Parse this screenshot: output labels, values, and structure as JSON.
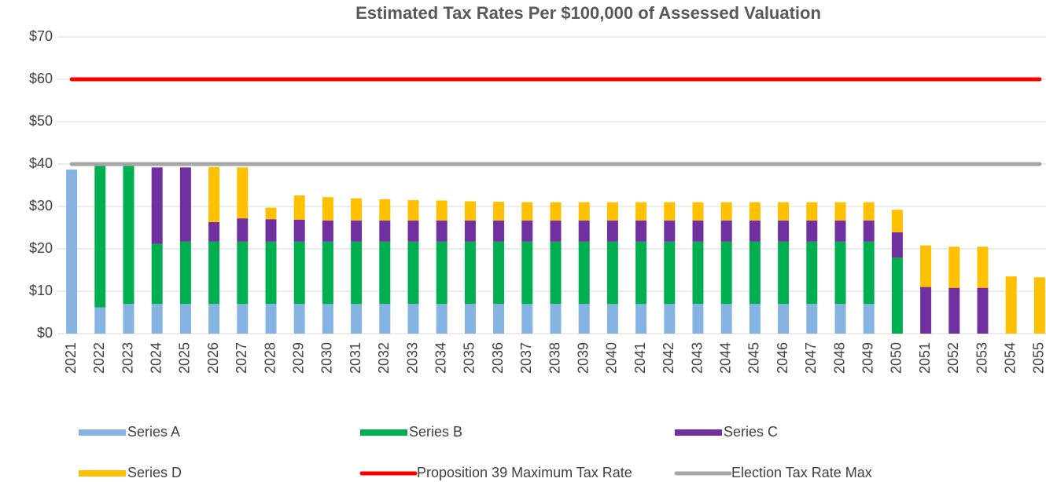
{
  "chart_data": {
    "type": "bar",
    "stacked": true,
    "title": "Estimated Tax Rates Per $100,000 of Assessed Valuation",
    "categories": [
      "2021",
      "2022",
      "2023",
      "2024",
      "2025",
      "2026",
      "2027",
      "2028",
      "2029",
      "2030",
      "2031",
      "2032",
      "2033",
      "2034",
      "2035",
      "2036",
      "2037",
      "2038",
      "2039",
      "2040",
      "2041",
      "2042",
      "2043",
      "2044",
      "2045",
      "2046",
      "2047",
      "2048",
      "2049",
      "2050",
      "2051",
      "2052",
      "2053",
      "2054",
      "2055"
    ],
    "ylim": [
      0,
      70
    ],
    "yticks": [
      {
        "value": 0,
        "label": "$0"
      },
      {
        "value": 10,
        "label": "$10"
      },
      {
        "value": 20,
        "label": "$20"
      },
      {
        "value": 30,
        "label": "$30"
      },
      {
        "value": 40,
        "label": "$40"
      },
      {
        "value": 50,
        "label": "$50"
      },
      {
        "value": 60,
        "label": "$60"
      },
      {
        "value": 70,
        "label": "$70"
      }
    ],
    "grid": true,
    "legend": "bottom",
    "series": [
      {
        "name": "Series A",
        "type": "bar",
        "color": "#85b4e3",
        "values": [
          38.7,
          6.2,
          7,
          7,
          7,
          7,
          7,
          7,
          7,
          7,
          7,
          7,
          7,
          7,
          7,
          7,
          7,
          7,
          7,
          7,
          7,
          7,
          7,
          7,
          7,
          7,
          7,
          7,
          7,
          0,
          0,
          0,
          0,
          0,
          0
        ]
      },
      {
        "name": "Series B",
        "type": "bar",
        "color": "#00b050",
        "values": [
          0,
          33.4,
          32.6,
          14.2,
          14.7,
          14.7,
          14.7,
          14.7,
          14.7,
          14.7,
          14.7,
          14.7,
          14.7,
          14.7,
          14.7,
          14.7,
          14.7,
          14.7,
          14.7,
          14.7,
          14.7,
          14.7,
          14.7,
          14.7,
          14.7,
          14.7,
          14.7,
          14.7,
          14.7,
          17.9,
          0,
          0,
          0,
          0,
          0
        ]
      },
      {
        "name": "Series C",
        "type": "bar",
        "color": "#7030a0",
        "values": [
          0,
          0,
          0,
          18,
          17.5,
          4.6,
          5.5,
          5.3,
          5.2,
          5,
          5,
          5,
          5,
          5,
          5,
          5,
          5,
          5,
          5,
          5,
          5,
          5,
          5,
          5,
          5,
          5,
          5,
          5,
          5,
          6,
          11,
          10.8,
          10.8,
          0,
          0
        ]
      },
      {
        "name": "Series D",
        "type": "bar",
        "color": "#ffc000",
        "values": [
          0,
          0,
          0,
          0,
          0,
          13,
          12,
          2.7,
          5.7,
          5.5,
          5.2,
          5,
          4.8,
          4.7,
          4.5,
          4.4,
          4.3,
          4.3,
          4.3,
          4.3,
          4.3,
          4.3,
          4.3,
          4.3,
          4.3,
          4.3,
          4.3,
          4.3,
          4.3,
          5.3,
          9.8,
          9.7,
          9.7,
          13.5,
          13.3
        ]
      },
      {
        "name": "Proposition 39 Maximum Tax Rate",
        "type": "line",
        "color": "#ff0000",
        "values": [
          60,
          60,
          60,
          60,
          60,
          60,
          60,
          60,
          60,
          60,
          60,
          60,
          60,
          60,
          60,
          60,
          60,
          60,
          60,
          60,
          60,
          60,
          60,
          60,
          60,
          60,
          60,
          60,
          60,
          60,
          60,
          60,
          60,
          60,
          60
        ]
      },
      {
        "name": "Election Tax Rate Max",
        "type": "line",
        "color": "#a6a6a6",
        "values": [
          40,
          40,
          40,
          40,
          40,
          40,
          40,
          40,
          40,
          40,
          40,
          40,
          40,
          40,
          40,
          40,
          40,
          40,
          40,
          40,
          40,
          40,
          40,
          40,
          40,
          40,
          40,
          40,
          40,
          40,
          40,
          40,
          40,
          40,
          40
        ]
      }
    ]
  }
}
